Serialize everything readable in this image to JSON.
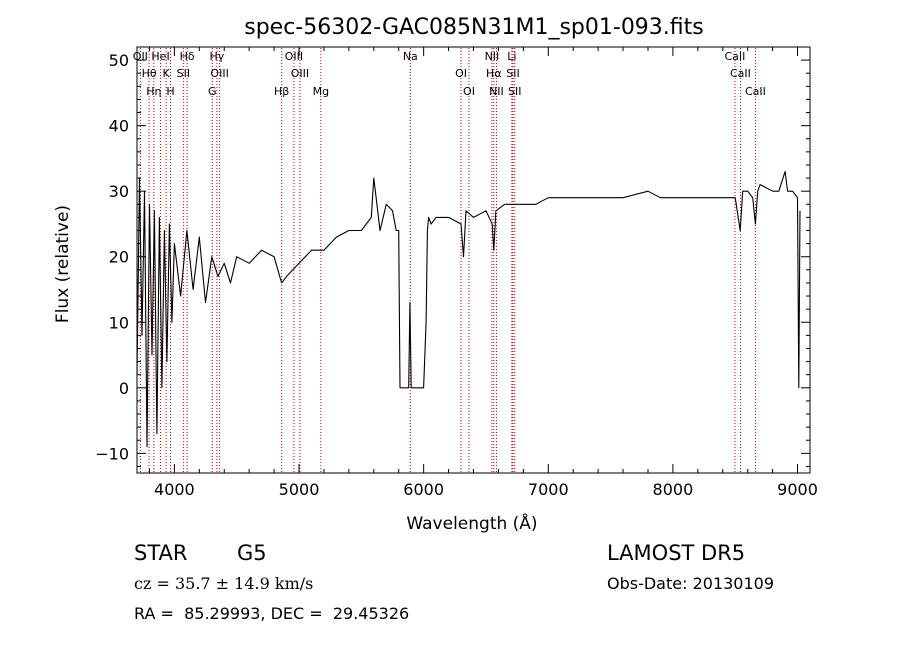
{
  "chart_data": {
    "type": "line",
    "title": "spec-56302-GAC085N31M1_sp01-093.fits",
    "xlabel": "Wavelength (Å)",
    "ylabel": "Flux (relative)",
    "xlim": [
      3700,
      9100
    ],
    "ylim": [
      -13,
      52
    ],
    "xticks": [
      4000,
      5000,
      6000,
      7000,
      8000,
      9000
    ],
    "yticks": [
      -10,
      0,
      10,
      20,
      30,
      40,
      50
    ],
    "xtick_labels": [
      "4000",
      "5000",
      "6000",
      "7000",
      "8000",
      "9000"
    ],
    "ytick_labels": [
      "−10",
      "0",
      "10",
      "20",
      "30",
      "40",
      "50"
    ],
    "grid": false,
    "series": [
      {
        "color": "#000000",
        "x": [
          3700,
          3720,
          3740,
          3760,
          3780,
          3800,
          3820,
          3840,
          3860,
          3880,
          3900,
          3920,
          3940,
          3960,
          3980,
          4000,
          4050,
          4100,
          4150,
          4200,
          4250,
          4300,
          4350,
          4400,
          4450,
          4500,
          4600,
          4700,
          4800,
          4860,
          4900,
          5000,
          5100,
          5200,
          5300,
          5400,
          5500,
          5580,
          5600,
          5650,
          5700,
          5750,
          5780,
          5800,
          5810,
          5880,
          5890,
          5900,
          5950,
          6000,
          6020,
          6030,
          6040,
          6060,
          6100,
          6200,
          6300,
          6320,
          6340,
          6400,
          6500,
          6550,
          6563,
          6580,
          6650,
          6700,
          6800,
          6900,
          7000,
          7200,
          7400,
          7600,
          7800,
          7900,
          8000,
          8200,
          8400,
          8500,
          8540,
          8560,
          8600,
          8640,
          8662,
          8680,
          8700,
          8800,
          8850,
          8900,
          8920,
          8960,
          9000,
          9010,
          9020
        ],
        "values": [
          2,
          32,
          8,
          30,
          -9,
          28,
          5,
          27,
          -7,
          26,
          0,
          24,
          4,
          25,
          10,
          22,
          14,
          24,
          15,
          23,
          13,
          20,
          17,
          19,
          16,
          20,
          19,
          21,
          20,
          16,
          17,
          19,
          21,
          21,
          23,
          24,
          24,
          26,
          32,
          24,
          28,
          27,
          24,
          24,
          0,
          0,
          13,
          0,
          0,
          0,
          10,
          24,
          26,
          25,
          26,
          26,
          25,
          20,
          27,
          26,
          27,
          25,
          21,
          27,
          28,
          28,
          28,
          28,
          29,
          29,
          29,
          29,
          30,
          29,
          29,
          29,
          29,
          29,
          24,
          30,
          30,
          29,
          25,
          30,
          31,
          30,
          30,
          33,
          30,
          30,
          29,
          0,
          27
        ]
      }
    ],
    "line_labels": [
      {
        "label": "OII",
        "x": 3727
      },
      {
        "label": "Hθ",
        "x": 3797
      },
      {
        "label": "Hη",
        "x": 3835
      },
      {
        "label": "HeI",
        "x": 3889
      },
      {
        "label": "K",
        "x": 3934
      },
      {
        "label": "H",
        "x": 3969
      },
      {
        "label": "Hδ",
        "x": 4102
      },
      {
        "label": "SII",
        "x": 4072
      },
      {
        "label": "G",
        "x": 4304
      },
      {
        "label": "Hγ",
        "x": 4341
      },
      {
        "label": "OIII",
        "x": 4363
      },
      {
        "label": "Hβ",
        "x": 4861
      },
      {
        "label": "OIII",
        "x": 4959
      },
      {
        "label": "OIII",
        "x": 5007
      },
      {
        "label": "Mg",
        "x": 5175
      },
      {
        "label": "Na",
        "x": 5893
      },
      {
        "label": "OI",
        "x": 6300
      },
      {
        "label": "OI",
        "x": 6364
      },
      {
        "label": "NII",
        "x": 6548
      },
      {
        "label": "Hα",
        "x": 6563
      },
      {
        "label": "NII",
        "x": 6584
      },
      {
        "label": "Li",
        "x": 6708
      },
      {
        "label": "SII",
        "x": 6717
      },
      {
        "label": "SII",
        "x": 6731
      },
      {
        "label": "CaII",
        "x": 8498
      },
      {
        "label": "CaII",
        "x": 8542
      },
      {
        "label": "CaII",
        "x": 8662
      }
    ],
    "line_marker_color": "#cc0000"
  },
  "info": {
    "object_class": "STAR",
    "subclass": "G5",
    "survey": "LAMOST DR5",
    "redshift": "cz = 35.7 ± 14.9 km/s",
    "obs_date": "Obs-Date: 20130109",
    "coords": "RA =  85.29993, DEC =  29.45326"
  }
}
